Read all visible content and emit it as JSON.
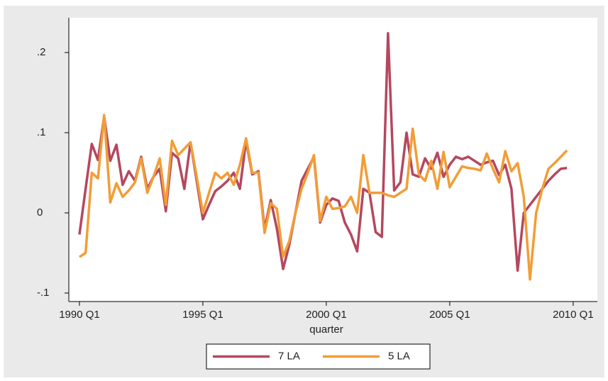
{
  "chart_data": {
    "type": "line",
    "x": [
      1990,
      1990.25,
      1990.5,
      1990.75,
      1991,
      1991.25,
      1991.5,
      1991.75,
      1992,
      1992.25,
      1992.5,
      1992.75,
      1993,
      1993.25,
      1993.5,
      1993.75,
      1994,
      1994.25,
      1994.5,
      1994.75,
      1995,
      1995.25,
      1995.5,
      1995.75,
      1996,
      1996.25,
      1996.5,
      1996.75,
      1997,
      1997.25,
      1997.5,
      1997.75,
      1998,
      1998.25,
      1998.5,
      1998.75,
      1999,
      1999.25,
      1999.5,
      1999.75,
      2000,
      2000.25,
      2000.5,
      2000.75,
      2001,
      2001.25,
      2001.5,
      2001.75,
      2002,
      2002.25,
      2002.5,
      2002.75,
      2003,
      2003.25,
      2003.5,
      2003.75,
      2004,
      2004.25,
      2004.5,
      2004.75,
      2005,
      2005.25,
      2005.5,
      2005.75,
      2006,
      2006.25,
      2006.5,
      2006.75,
      2007,
      2007.25,
      2007.5,
      2007.75,
      2008,
      2008.25,
      2008.5,
      2008.75,
      2009,
      2009.25,
      2009.5,
      2009.75
    ],
    "series": [
      {
        "name": "7 LA",
        "color": "#b5475f",
        "values": [
          -0.027,
          0.03,
          0.086,
          0.066,
          0.12,
          0.065,
          0.085,
          0.035,
          0.052,
          0.04,
          0.07,
          0.03,
          0.045,
          0.055,
          0.002,
          0.075,
          0.068,
          0.03,
          0.088,
          0.04,
          -0.008,
          0.01,
          0.027,
          0.033,
          0.04,
          0.05,
          0.03,
          0.09,
          0.048,
          0.052,
          -0.02,
          0.016,
          -0.02,
          -0.07,
          -0.04,
          0.0,
          0.04,
          0.055,
          0.07,
          -0.012,
          0.01,
          0.018,
          0.015,
          -0.012,
          -0.027,
          -0.048,
          0.03,
          0.025,
          -0.024,
          -0.03,
          0.224,
          0.028,
          0.038,
          0.1,
          0.048,
          0.045,
          0.068,
          0.055,
          0.075,
          0.045,
          0.06,
          0.07,
          0.067,
          0.07,
          0.065,
          0.06,
          0.063,
          0.065,
          0.047,
          0.06,
          0.03,
          -0.072,
          0.0,
          0.01,
          0.02,
          0.03,
          0.04,
          0.048,
          0.055,
          0.056
        ]
      },
      {
        "name": "5 LA",
        "color": "#f29d36",
        "values": [
          -0.055,
          -0.05,
          0.05,
          0.043,
          0.122,
          0.013,
          0.037,
          0.02,
          0.028,
          0.038,
          0.068,
          0.025,
          0.045,
          0.068,
          0.01,
          0.09,
          0.072,
          0.08,
          0.088,
          0.045,
          0.0,
          0.025,
          0.05,
          0.043,
          0.05,
          0.035,
          0.06,
          0.093,
          0.05,
          0.05,
          -0.025,
          0.012,
          0.005,
          -0.055,
          -0.035,
          0.0,
          0.03,
          0.05,
          0.072,
          -0.01,
          0.02,
          0.005,
          0.006,
          0.008,
          0.02,
          0.0,
          0.072,
          0.025,
          0.025,
          0.025,
          0.022,
          0.02,
          0.025,
          0.03,
          0.105,
          0.048,
          0.04,
          0.065,
          0.03,
          0.076,
          0.032,
          0.045,
          0.058,
          0.056,
          0.055,
          0.053,
          0.074,
          0.055,
          0.038,
          0.077,
          0.052,
          0.062,
          0.02,
          -0.083,
          0.0,
          0.03,
          0.055,
          0.062,
          0.07,
          0.078
        ]
      }
    ],
    "x_label": "quarter",
    "xlim": [
      1989.57,
      2010.98
    ],
    "xticks": [
      {
        "value": 1990,
        "label": "1990 Q1"
      },
      {
        "value": 1995,
        "label": "1995 Q1"
      },
      {
        "value": 2000,
        "label": "2000 Q1"
      },
      {
        "value": 2005,
        "label": "2005 Q1"
      },
      {
        "value": 2010,
        "label": "2010 Q1"
      }
    ],
    "ylim": [
      -0.1106,
      0.2434
    ],
    "yticks": [
      {
        "value": -0.1,
        "label": "-.1"
      },
      0,
      {
        "value": 0.1,
        "label": ".1"
      },
      {
        "value": 0.2,
        "label": ".2"
      }
    ],
    "legend": "bottom"
  }
}
